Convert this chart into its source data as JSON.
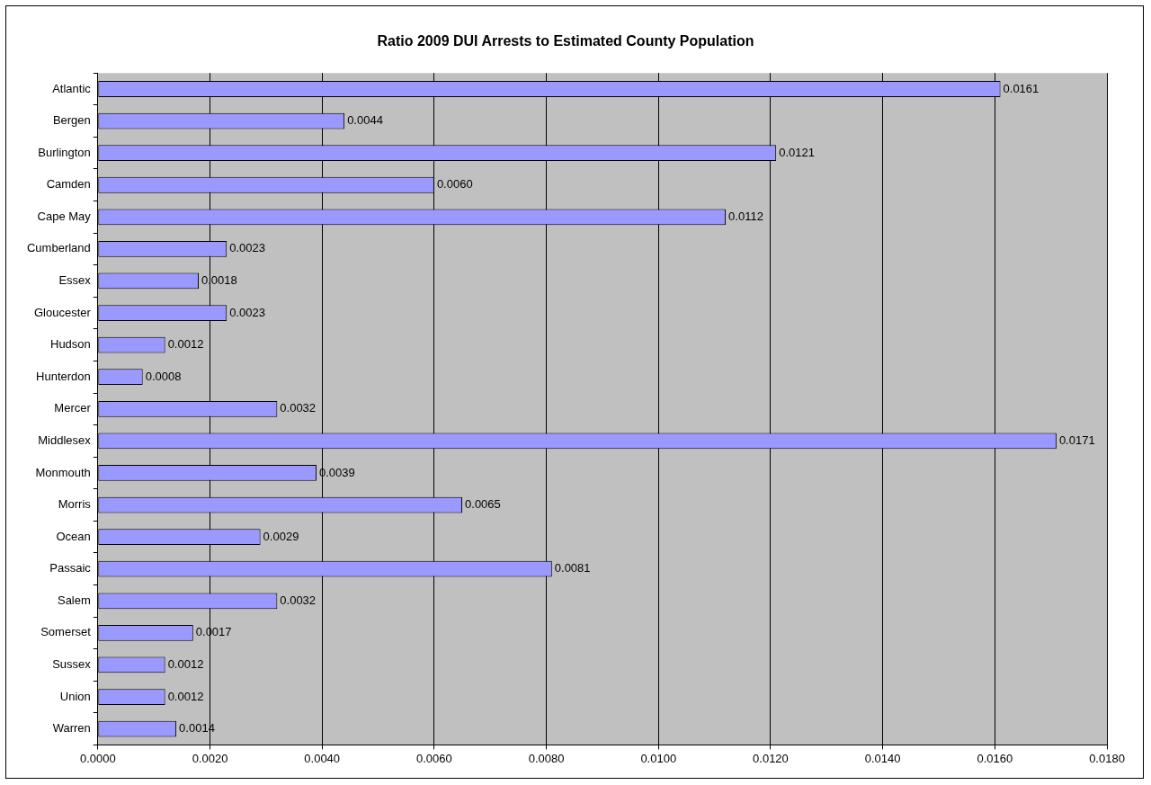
{
  "chart_data": {
    "type": "bar",
    "orientation": "horizontal",
    "title": "Ratio 2009 DUI Arrests to Estimated County Population",
    "categories": [
      "Atlantic",
      "Bergen",
      "Burlington",
      "Camden",
      "Cape May",
      "Cumberland",
      "Essex",
      "Gloucester",
      "Hudson",
      "Hunterdon",
      "Mercer",
      "Middlesex",
      "Monmouth",
      "Morris",
      "Ocean",
      "Passaic",
      "Salem",
      "Somerset",
      "Sussex",
      "Union",
      "Warren"
    ],
    "values": [
      0.0161,
      0.0044,
      0.0121,
      0.006,
      0.0112,
      0.0023,
      0.0018,
      0.0023,
      0.0012,
      0.0008,
      0.0032,
      0.0171,
      0.0039,
      0.0065,
      0.0029,
      0.0081,
      0.0032,
      0.0017,
      0.0012,
      0.0012,
      0.0014
    ],
    "value_labels": [
      "0.0161",
      "0.0044",
      "0.0121",
      "0.0060",
      "0.0112",
      "0.0023",
      "0.0018",
      "0.0023",
      "0.0012",
      "0.0008",
      "0.0032",
      "0.0171",
      "0.0039",
      "0.0065",
      "0.0029",
      "0.0081",
      "0.0032",
      "0.0017",
      "0.0012",
      "0.0012",
      "0.0014"
    ],
    "color": "#9999ff",
    "xlim": [
      0,
      0.018
    ],
    "xticks": [
      {
        "value": 0,
        "label": "0.0000"
      },
      {
        "value": 0.002,
        "label": "0.0020"
      },
      {
        "value": 0.004,
        "label": "0.0040"
      },
      {
        "value": 0.006,
        "label": "0.0060"
      },
      {
        "value": 0.008,
        "label": "0.0080"
      },
      {
        "value": 0.01,
        "label": "0.0100"
      },
      {
        "value": 0.012,
        "label": "0.0120"
      },
      {
        "value": 0.014,
        "label": "0.0140"
      },
      {
        "value": 0.016,
        "label": "0.0160"
      },
      {
        "value": 0.018,
        "label": "0.0180"
      }
    ],
    "grid": "x",
    "legend": false
  }
}
